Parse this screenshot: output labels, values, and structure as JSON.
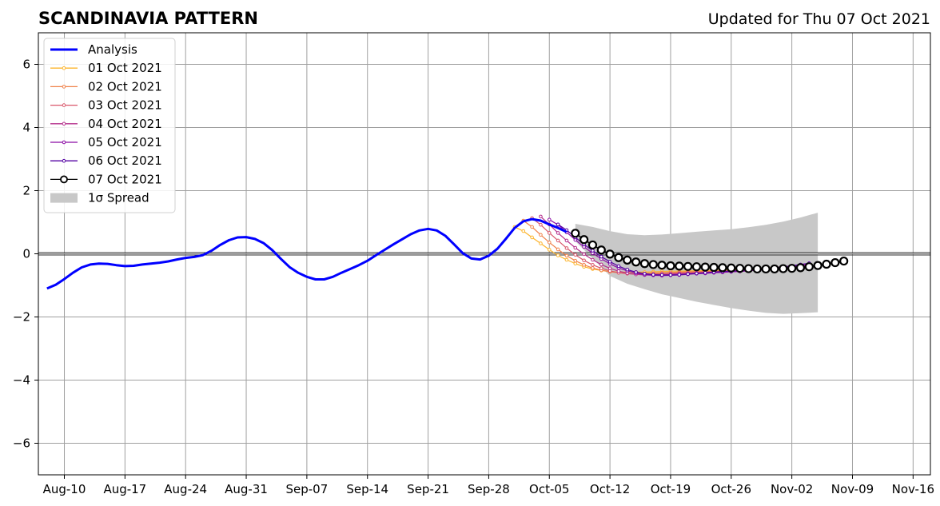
{
  "chart_data": {
    "type": "line",
    "title": "SCANDINAVIA PATTERN",
    "subtitle": "Updated for Thu 07 Oct 2021",
    "xlabel": "",
    "ylabel": "",
    "x_range": [
      "2021-08-07",
      "2021-11-18"
    ],
    "ylim": [
      -7,
      7
    ],
    "y_ticks": [
      -6,
      -4,
      -2,
      0,
      2,
      4,
      6
    ],
    "y_tick_labels": [
      "−6",
      "−4",
      "−2",
      "0",
      "2",
      "4",
      "6"
    ],
    "x_ticks": [
      "2021-08-10",
      "2021-08-17",
      "2021-08-24",
      "2021-08-31",
      "2021-09-07",
      "2021-09-14",
      "2021-09-21",
      "2021-09-28",
      "2021-10-05",
      "2021-10-12",
      "2021-10-19",
      "2021-10-26",
      "2021-11-02",
      "2021-11-09",
      "2021-11-16"
    ],
    "x_tick_labels": [
      "Aug-10",
      "Aug-17",
      "Aug-24",
      "Aug-31",
      "Sep-07",
      "Sep-14",
      "Sep-21",
      "Sep-28",
      "Oct-05",
      "Oct-12",
      "Oct-19",
      "Oct-26",
      "Nov-02",
      "Nov-09",
      "Nov-16"
    ],
    "grid": true,
    "legend_position": "top-left",
    "analysis": {
      "name": "Analysis",
      "color": "#0000ff",
      "points": [
        [
          "2021-08-08",
          -1.1
        ],
        [
          "2021-08-09",
          -0.98
        ],
        [
          "2021-08-10",
          -0.8
        ],
        [
          "2021-08-11",
          -0.6
        ],
        [
          "2021-08-12",
          -0.43
        ],
        [
          "2021-08-13",
          -0.34
        ],
        [
          "2021-08-14",
          -0.31
        ],
        [
          "2021-08-15",
          -0.32
        ],
        [
          "2021-08-16",
          -0.36
        ],
        [
          "2021-08-17",
          -0.39
        ],
        [
          "2021-08-18",
          -0.38
        ],
        [
          "2021-08-19",
          -0.34
        ],
        [
          "2021-08-20",
          -0.31
        ],
        [
          "2021-08-21",
          -0.28
        ],
        [
          "2021-08-22",
          -0.24
        ],
        [
          "2021-08-23",
          -0.18
        ],
        [
          "2021-08-24",
          -0.13
        ],
        [
          "2021-08-25",
          -0.1
        ],
        [
          "2021-08-26",
          -0.04
        ],
        [
          "2021-08-27",
          0.1
        ],
        [
          "2021-08-28",
          0.28
        ],
        [
          "2021-08-29",
          0.43
        ],
        [
          "2021-08-30",
          0.52
        ],
        [
          "2021-08-31",
          0.53
        ],
        [
          "2021-09-01",
          0.47
        ],
        [
          "2021-09-02",
          0.34
        ],
        [
          "2021-09-03",
          0.12
        ],
        [
          "2021-09-04",
          -0.16
        ],
        [
          "2021-09-05",
          -0.42
        ],
        [
          "2021-09-06",
          -0.6
        ],
        [
          "2021-09-07",
          -0.73
        ],
        [
          "2021-09-08",
          -0.81
        ],
        [
          "2021-09-09",
          -0.81
        ],
        [
          "2021-09-10",
          -0.73
        ],
        [
          "2021-09-11",
          -0.6
        ],
        [
          "2021-09-12",
          -0.48
        ],
        [
          "2021-09-13",
          -0.36
        ],
        [
          "2021-09-14",
          -0.22
        ],
        [
          "2021-09-15",
          -0.04
        ],
        [
          "2021-09-16",
          0.13
        ],
        [
          "2021-09-17",
          0.3
        ],
        [
          "2021-09-18",
          0.46
        ],
        [
          "2021-09-19",
          0.62
        ],
        [
          "2021-09-20",
          0.74
        ],
        [
          "2021-09-21",
          0.79
        ],
        [
          "2021-09-22",
          0.74
        ],
        [
          "2021-09-23",
          0.57
        ],
        [
          "2021-09-24",
          0.3
        ],
        [
          "2021-09-25",
          0.02
        ],
        [
          "2021-09-26",
          -0.15
        ],
        [
          "2021-09-27",
          -0.18
        ],
        [
          "2021-09-28",
          -0.06
        ],
        [
          "2021-09-29",
          0.16
        ],
        [
          "2021-09-30",
          0.48
        ],
        [
          "2021-10-01",
          0.82
        ],
        [
          "2021-10-02",
          1.03
        ],
        [
          "2021-10-03",
          1.1
        ],
        [
          "2021-10-04",
          1.05
        ],
        [
          "2021-10-05",
          0.93
        ],
        [
          "2021-10-06",
          0.82
        ],
        [
          "2021-10-07",
          0.69
        ]
      ]
    },
    "series": [
      {
        "name": "01 Oct 2021",
        "color": "#fcb42c",
        "start": "2021-10-01",
        "values": [
          0.85,
          0.72,
          0.52,
          0.33,
          0.13,
          -0.05,
          -0.19,
          -0.31,
          -0.41,
          -0.48,
          -0.53,
          -0.56,
          -0.58,
          -0.58,
          -0.58,
          -0.58,
          -0.57,
          -0.56,
          -0.55,
          -0.55,
          -0.54,
          -0.54,
          -0.53,
          -0.53,
          -0.52,
          -0.51,
          -0.5,
          -0.49,
          -0.47,
          -0.45,
          -0.43,
          -0.41,
          -0.38,
          -0.36,
          -0.33
        ]
      },
      {
        "name": "02 Oct 2021",
        "color": "#f0814a",
        "start": "2021-10-02",
        "values": [
          1.05,
          0.85,
          0.6,
          0.36,
          0.14,
          -0.06,
          -0.22,
          -0.35,
          -0.45,
          -0.52,
          -0.57,
          -0.6,
          -0.62,
          -0.62,
          -0.62,
          -0.61,
          -0.6,
          -0.59,
          -0.58,
          -0.57,
          -0.56,
          -0.56,
          -0.55,
          -0.54,
          -0.53,
          -0.52,
          -0.51,
          -0.49,
          -0.47,
          -0.45,
          -0.42,
          -0.4,
          -0.37,
          -0.34
        ]
      },
      {
        "name": "03 Oct 2021",
        "color": "#d9576b",
        "start": "2021-10-03",
        "values": [
          1.13,
          0.92,
          0.66,
          0.42,
          0.18,
          -0.03,
          -0.21,
          -0.35,
          -0.46,
          -0.54,
          -0.6,
          -0.63,
          -0.65,
          -0.65,
          -0.64,
          -0.63,
          -0.62,
          -0.61,
          -0.6,
          -0.59,
          -0.58,
          -0.57,
          -0.56,
          -0.55,
          -0.54,
          -0.52,
          -0.5,
          -0.48,
          -0.46,
          -0.43,
          -0.4,
          -0.37,
          -0.34
        ]
      },
      {
        "name": "04 Oct 2021",
        "color": "#b52f8c",
        "start": "2021-10-04",
        "values": [
          1.18,
          0.93,
          0.66,
          0.42,
          0.19,
          -0.01,
          -0.19,
          -0.34,
          -0.46,
          -0.55,
          -0.61,
          -0.65,
          -0.67,
          -0.67,
          -0.66,
          -0.65,
          -0.63,
          -0.62,
          -0.61,
          -0.6,
          -0.58,
          -0.57,
          -0.56,
          -0.55,
          -0.53,
          -0.51,
          -0.49,
          -0.47,
          -0.44,
          -0.41,
          -0.38,
          -0.35
        ]
      },
      {
        "name": "05 Oct 2021",
        "color": "#8b0aa5",
        "start": "2021-10-05",
        "values": [
          1.08,
          0.92,
          0.68,
          0.44,
          0.22,
          0.02,
          -0.16,
          -0.32,
          -0.45,
          -0.54,
          -0.61,
          -0.66,
          -0.68,
          -0.69,
          -0.68,
          -0.67,
          -0.65,
          -0.63,
          -0.62,
          -0.6,
          -0.59,
          -0.57,
          -0.56,
          -0.54,
          -0.52,
          -0.5,
          -0.47,
          -0.44,
          -0.41,
          -0.38,
          -0.35
        ]
      },
      {
        "name": "06 Oct 2021",
        "color": "#5302a3",
        "start": "2021-10-06",
        "values": [
          0.93,
          0.75,
          0.52,
          0.3,
          0.1,
          -0.09,
          -0.25,
          -0.39,
          -0.5,
          -0.58,
          -0.63,
          -0.66,
          -0.67,
          -0.67,
          -0.66,
          -0.64,
          -0.62,
          -0.6,
          -0.58,
          -0.56,
          -0.55,
          -0.53,
          -0.51,
          -0.49,
          -0.47,
          -0.44,
          -0.41,
          -0.38,
          -0.34,
          -0.3
        ]
      },
      {
        "name": "07 Oct 2021",
        "color": "#000000",
        "start": "2021-10-08",
        "values": [
          0.65,
          0.45,
          0.28,
          0.12,
          -0.01,
          -0.12,
          -0.2,
          -0.26,
          -0.31,
          -0.34,
          -0.36,
          -0.38,
          -0.39,
          -0.4,
          -0.41,
          -0.42,
          -0.43,
          -0.44,
          -0.45,
          -0.46,
          -0.47,
          -0.48,
          -0.48,
          -0.48,
          -0.47,
          -0.46,
          -0.44,
          -0.41,
          -0.37,
          -0.33,
          -0.28,
          -0.23
        ]
      }
    ],
    "spread": {
      "name": "1σ Spread",
      "color": "#c8c8c8",
      "points": [
        [
          "2021-10-08",
          0.95,
          0.4
        ],
        [
          "2021-10-10",
          0.85,
          -0.15
        ],
        [
          "2021-10-12",
          0.72,
          -0.7
        ],
        [
          "2021-10-14",
          0.62,
          -0.95
        ],
        [
          "2021-10-16",
          0.59,
          -1.12
        ],
        [
          "2021-10-18",
          0.61,
          -1.28
        ],
        [
          "2021-10-20",
          0.65,
          -1.4
        ],
        [
          "2021-10-22",
          0.7,
          -1.52
        ],
        [
          "2021-10-24",
          0.74,
          -1.62
        ],
        [
          "2021-10-26",
          0.78,
          -1.72
        ],
        [
          "2021-10-28",
          0.84,
          -1.8
        ],
        [
          "2021-10-30",
          0.92,
          -1.87
        ],
        [
          "2021-11-01",
          1.02,
          -1.9
        ],
        [
          "2021-11-03",
          1.15,
          -1.88
        ],
        [
          "2021-11-05",
          1.3,
          -1.85
        ],
        [
          "2021-11-05",
          1.37,
          -1.85
        ]
      ]
    }
  }
}
